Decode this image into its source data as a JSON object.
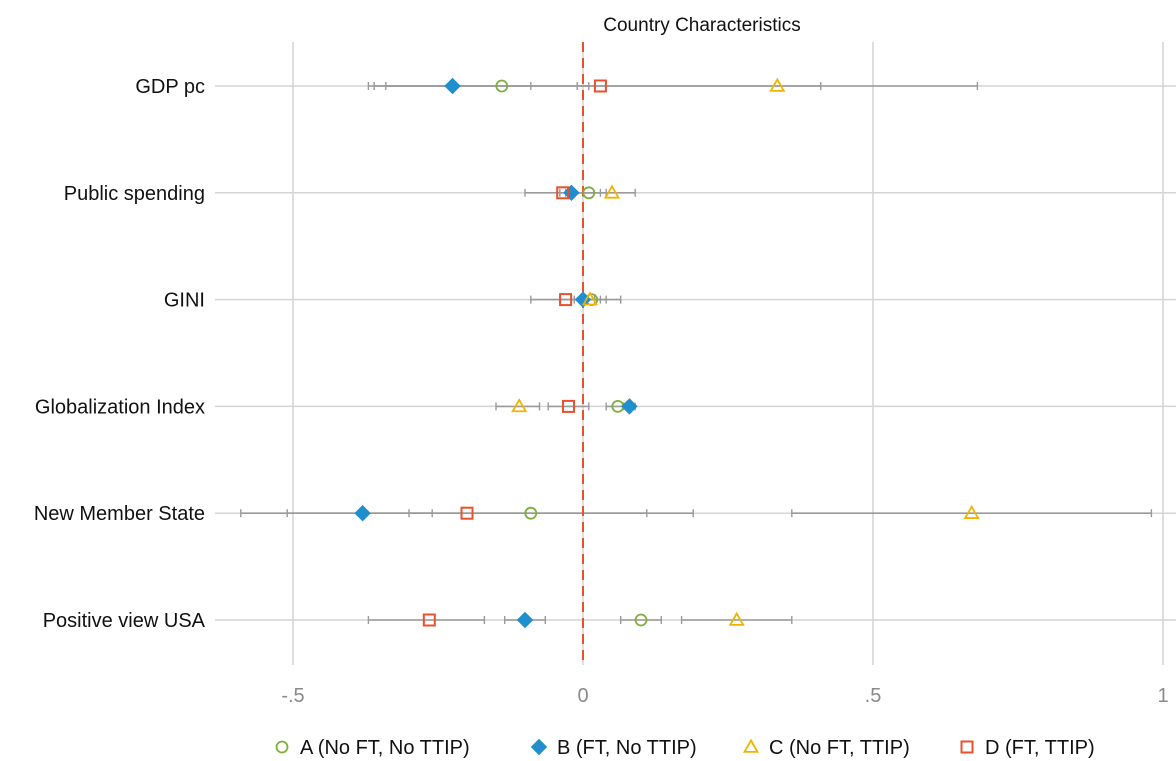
{
  "chart_data": {
    "type": "scatter",
    "title": "Country Characteristics",
    "xlabel": "",
    "ylabel": "",
    "xlim": [
      -0.5,
      1
    ],
    "xticks": [
      -0.5,
      0,
      0.5,
      1
    ],
    "xtick_labels": [
      "-.5",
      "0",
      ".5",
      "1"
    ],
    "reference_line": 0,
    "grid": true,
    "legend_position": "bottom",
    "categories": [
      "GDP pc",
      "Public spending",
      "GINI",
      "Globalization Index",
      "New Member State",
      "Positive view USA"
    ],
    "series": [
      {
        "name": "A (No FT, No TTIP)",
        "marker": "circle-open",
        "color": "#7fae3f",
        "values": [
          -0.14,
          0.01,
          0.015,
          0.06,
          -0.09,
          0.1
        ],
        "ci": [
          [
            -0.34,
            0.01
          ],
          [
            -0.03,
            0.04
          ],
          [
            -0.015,
            0.04
          ],
          [
            0.04,
            0.08
          ],
          [
            -0.3,
            0.11
          ],
          [
            0.065,
            0.135
          ]
        ]
      },
      {
        "name": "B (FT, No TTIP)",
        "marker": "diamond",
        "color": "#1f8fce",
        "values": [
          -0.225,
          -0.02,
          0.0,
          0.08,
          -0.38,
          -0.1
        ],
        "ci": [
          [
            -0.36,
            -0.09
          ],
          [
            -0.04,
            0.0
          ],
          [
            -0.02,
            0.02
          ],
          [
            0.07,
            0.09
          ],
          [
            -0.51,
            -0.26
          ],
          [
            -0.135,
            -0.065
          ]
        ]
      },
      {
        "name": "C (No FT, TTIP)",
        "marker": "triangle-open",
        "color": "#f0b400",
        "values": [
          0.335,
          0.05,
          0.012,
          -0.11,
          0.67,
          0.265
        ],
        "ci": [
          [
            -0.01,
            0.68
          ],
          [
            0.0,
            0.09
          ],
          [
            -0.04,
            0.065
          ],
          [
            -0.15,
            -0.075
          ],
          [
            0.36,
            0.98
          ],
          [
            0.17,
            0.36
          ]
        ]
      },
      {
        "name": "D (FT, TTIP)",
        "marker": "square-open",
        "color": "#e8502f",
        "values": [
          0.03,
          -0.035,
          -0.03,
          -0.025,
          -0.2,
          -0.265
        ],
        "ci": [
          [
            -0.37,
            0.41
          ],
          [
            -0.1,
            0.03
          ],
          [
            -0.09,
            0.03
          ],
          [
            -0.06,
            0.01
          ],
          [
            -0.59,
            0.19
          ],
          [
            -0.37,
            -0.17
          ]
        ]
      }
    ]
  }
}
